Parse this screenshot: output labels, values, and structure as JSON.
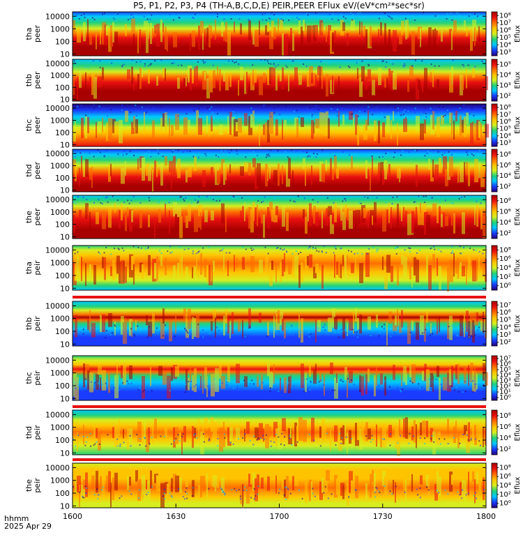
{
  "chart_data": {
    "type": "heatmap",
    "title": "P5, P1, P2, P3, P4 (TH-A,B,C,D,E) PEIR,PEER EFlux eV/(eV*cm²*sec*sr)",
    "x_ticks": [
      "1600",
      "1630",
      "1700",
      "1730",
      "1800"
    ],
    "x_range_minutes": [
      0,
      120
    ],
    "footer_labels": [
      "hhmm",
      "2025 Apr 29"
    ],
    "y_scale": "log",
    "y_ticks": [
      "10",
      "100",
      "1000",
      "10000"
    ],
    "colorbar_label": "Eflux",
    "colorscale": [
      "#23007a",
      "#1a3cff",
      "#00c8ff",
      "#22d27a",
      "#d6ee20",
      "#ffc400",
      "#ff6e00",
      "#e81010",
      "#a80000"
    ],
    "panels": [
      {
        "name": "tha",
        "species": "peer",
        "ylabel": [
          "tha",
          "peer"
        ],
        "cb_ticks": [
          "10³",
          "10⁴",
          "10⁵",
          "10⁶",
          "10⁷",
          "10⁸"
        ],
        "cb_range_exp": [
          2.5,
          8
        ]
      },
      {
        "name": "thb",
        "species": "peer",
        "ylabel": [
          "thb",
          "peer"
        ],
        "cb_ticks": [
          "10²",
          "10³",
          "10⁴",
          "10⁵"
        ],
        "cb_range_exp": [
          1.5,
          5.8
        ]
      },
      {
        "name": "thc",
        "species": "peer",
        "ylabel": [
          "thc",
          "peer"
        ],
        "cb_ticks": [
          "10⁸",
          "10⁷",
          "10⁶",
          "10⁵",
          "10⁴",
          "10³"
        ],
        "cb_range_exp": [
          2.5,
          8.2
        ]
      },
      {
        "name": "thd",
        "species": "peer",
        "ylabel": [
          "thd",
          "peer"
        ],
        "cb_ticks": [
          "10²",
          "10⁴",
          "10⁶",
          "10⁸"
        ],
        "cb_range_exp": [
          1.5,
          8.2
        ]
      },
      {
        "name": "the",
        "species": "peer",
        "ylabel": [
          "the",
          "peer"
        ],
        "cb_ticks": [
          "10²",
          "10⁴",
          "10⁶",
          "10⁸"
        ],
        "cb_range_exp": [
          1.5,
          8.2
        ]
      },
      {
        "name": "tha",
        "species": "peir",
        "ylabel": [
          "tha",
          "peir"
        ],
        "cb_ticks": [
          "10⁰",
          "10²",
          "10⁴",
          "10⁶",
          "10⁸"
        ],
        "cb_range_exp": [
          -0.3,
          8.2
        ]
      },
      {
        "name": "thb",
        "species": "peir",
        "ylabel": [
          "thb",
          "peir"
        ],
        "cb_ticks": [
          "10²",
          "10³",
          "10⁴",
          "10⁵",
          "10⁶",
          "10⁷"
        ],
        "cb_range_exp": [
          1.6,
          7.4
        ]
      },
      {
        "name": "thc",
        "species": "peir",
        "ylabel": [
          "thc",
          "peir"
        ],
        "cb_ticks": [
          "10⁰",
          "10¹",
          "10²",
          "10³",
          "10⁴",
          "10⁵",
          "10⁶",
          "10⁷"
        ],
        "cb_range_exp": [
          -0.3,
          7.4
        ]
      },
      {
        "name": "thd",
        "species": "peir",
        "ylabel": [
          "thd",
          "peir"
        ],
        "cb_ticks": [
          "10²",
          "10⁴",
          "10⁶",
          "10⁸"
        ],
        "cb_range_exp": [
          1.5,
          8.2
        ]
      },
      {
        "name": "the",
        "species": "peir",
        "ylabel": [
          "the",
          "peir"
        ],
        "cb_ticks": [
          "10⁰",
          "10²",
          "10⁴",
          "10⁶",
          "10⁸"
        ],
        "cb_range_exp": [
          -0.3,
          8.2
        ]
      }
    ]
  }
}
